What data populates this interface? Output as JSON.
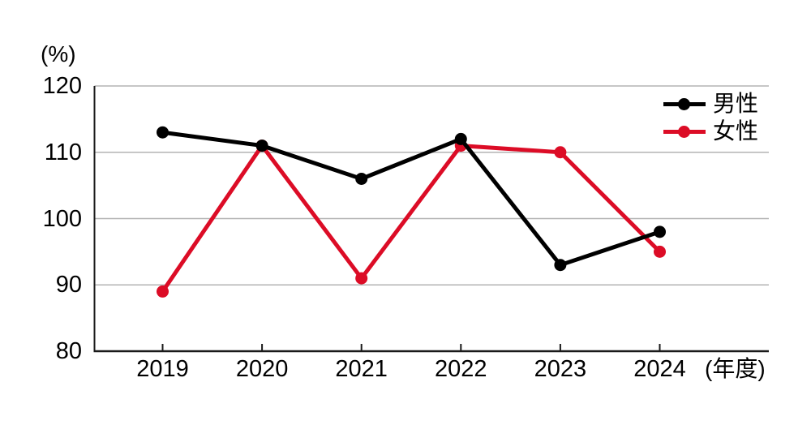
{
  "chart_data": {
    "type": "line",
    "title": "",
    "unit_label": "(%)",
    "x_axis_label": "(年度)",
    "categories": [
      "2019",
      "2020",
      "2021",
      "2022",
      "2023",
      "2024"
    ],
    "series": [
      {
        "name": "男性",
        "color": "#000000",
        "values": [
          113,
          111,
          106,
          112,
          93,
          98
        ]
      },
      {
        "name": "女性",
        "color": "#dc0c26",
        "values": [
          89,
          111,
          91,
          111,
          110,
          95
        ]
      }
    ],
    "ylim": [
      80,
      120
    ],
    "yticks": [
      80,
      90,
      100,
      110,
      120
    ],
    "grid": true,
    "legend_position": "top-right",
    "colors": {
      "grid": "#b3b3b3",
      "axis": "#1a1a1a",
      "background": "#ffffff",
      "text": "#000000"
    }
  }
}
